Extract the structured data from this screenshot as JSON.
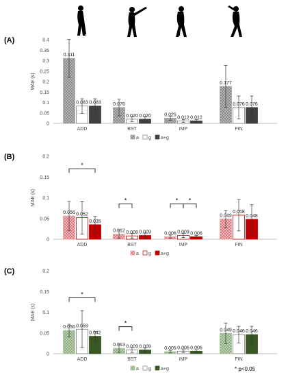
{
  "phases": [
    {
      "name": "golfer-address-silhouette"
    },
    {
      "name": "golfer-backswing-silhouette"
    },
    {
      "name": "golfer-impact-silhouette"
    },
    {
      "name": "golfer-finish-silhouette"
    }
  ],
  "footnote": "* p<0.05",
  "chart_data": [
    {
      "type": "bar",
      "panel": "(A)",
      "ylabel": "MAE (s)",
      "ylim": [
        0,
        0.4
      ],
      "yticks": [
        0,
        0.05,
        0.1,
        0.15,
        0.2,
        0.25,
        0.3,
        0.35,
        0.4
      ],
      "categories": [
        "ADD",
        "BST",
        "IMP",
        "FIN"
      ],
      "series": [
        {
          "name": "a",
          "values": [
            0.311,
            0.076,
            0.025,
            0.177
          ],
          "err": [
            0.09,
            0.04,
            0.01,
            0.1
          ],
          "labels": [
            "0.311",
            "0.076",
            "0.025",
            "0.177"
          ]
        },
        {
          "name": "g",
          "values": [
            0.083,
            0.02,
            0.012,
            0.076
          ],
          "err": [
            0.035,
            0.012,
            0.007,
            0.055
          ],
          "labels": [
            "0.083",
            "0.020",
            "0.012",
            "0.076"
          ]
        },
        {
          "name": "a+g",
          "values": [
            0.083,
            0.02,
            0.012,
            0.076
          ],
          "err": [
            0.035,
            0.012,
            0.006,
            0.055
          ],
          "labels": [
            "0.083",
            "0.020",
            "0.012",
            "0.076"
          ]
        }
      ],
      "colors": [
        "#a9a9a9",
        "#ffffff",
        "#404040"
      ],
      "edge": "#7f7f7f",
      "significance": []
    },
    {
      "type": "bar",
      "panel": "(B)",
      "ylabel": "MAE (s)",
      "ylim": [
        0,
        0.2
      ],
      "yticks": [
        0,
        0.05,
        0.1,
        0.15,
        0.2
      ],
      "categories": [
        "ADD",
        "BST",
        "IMP",
        "FIN"
      ],
      "series": [
        {
          "name": "a",
          "values": [
            0.056,
            0.012,
            0.006,
            0.049
          ],
          "err": [
            0.035,
            0.01,
            0.004,
            0.02
          ],
          "labels": [
            "0.056",
            "0.012",
            "0.006",
            "0.049"
          ]
        },
        {
          "name": "g",
          "values": [
            0.052,
            0.008,
            0.009,
            0.058
          ],
          "err": [
            0.04,
            0.006,
            0.005,
            0.038
          ],
          "labels": [
            "0.052",
            "0.008",
            "0.009",
            "0.058"
          ]
        },
        {
          "name": "a+g",
          "values": [
            0.035,
            0.009,
            0.006,
            0.048
          ],
          "err": [
            0.02,
            0.006,
            0.003,
            0.035
          ],
          "labels": [
            "0.035",
            "0.009",
            "0.006",
            "0.048"
          ]
        }
      ],
      "colors": [
        "#e8a3a6",
        "#ffffff",
        "#c00000"
      ],
      "edge": "#c00000",
      "significance": [
        {
          "category": "ADD",
          "from": 0,
          "to": 2,
          "level": 0.17,
          "text": "*"
        },
        {
          "category": "BST",
          "from": 0,
          "to": 1,
          "level": 0.085,
          "text": "*"
        },
        {
          "category": "IMP",
          "from": 0,
          "to": 1,
          "level": 0.085,
          "text": "*"
        },
        {
          "category": "IMP",
          "from": 1,
          "to": 2,
          "level": 0.085,
          "text": "*"
        }
      ]
    },
    {
      "type": "bar",
      "panel": "(C)",
      "ylabel": "MAE (s)",
      "ylim": [
        0,
        0.2
      ],
      "yticks": [
        0,
        0.05,
        0.1,
        0.15,
        0.2
      ],
      "categories": [
        "ADD",
        "BST",
        "IMP",
        "FIN"
      ],
      "series": [
        {
          "name": "a",
          "values": [
            0.056,
            0.013,
            0.005,
            0.049
          ],
          "err": [
            0.015,
            0.01,
            0.003,
            0.025
          ],
          "labels": [
            "0.056",
            "0.013",
            "0.005",
            "0.049"
          ]
        },
        {
          "name": "g",
          "values": [
            0.059,
            0.009,
            0.006,
            0.046
          ],
          "err": [
            0.045,
            0.006,
            0.003,
            0.02
          ],
          "labels": [
            "0.059",
            "0.009",
            "0.006",
            "0.046"
          ]
        },
        {
          "name": "a+g",
          "values": [
            0.042,
            0.009,
            0.006,
            0.046
          ],
          "err": [
            0.012,
            0.005,
            0.003,
            0.02
          ],
          "labels": [
            "0.042",
            "0.009",
            "0.006",
            "0.046"
          ]
        }
      ],
      "colors": [
        "#a9c3a0",
        "#ffffff",
        "#385723"
      ],
      "edge": "#7f7f7f",
      "significance": [
        {
          "category": "ADD",
          "from": 0,
          "to": 2,
          "level": 0.135,
          "text": "*"
        },
        {
          "category": "BST",
          "from": 0,
          "to": 1,
          "level": 0.065,
          "text": "*"
        }
      ]
    }
  ]
}
